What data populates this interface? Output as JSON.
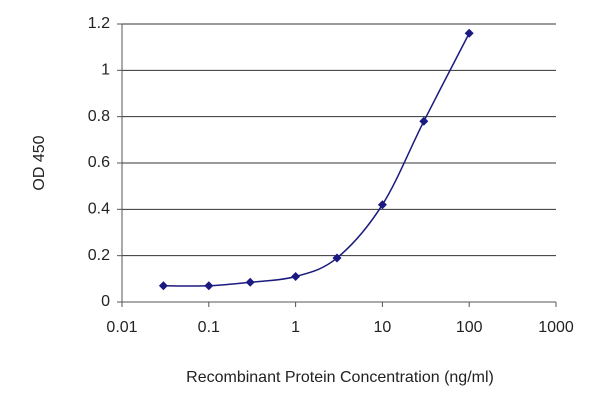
{
  "chart_data": {
    "type": "line",
    "x_label": "Recombinant Protein Concentration (ng/ml)",
    "y_label": "OD 450",
    "x": [
      0.03,
      0.1,
      0.3,
      1,
      3,
      10,
      30,
      100
    ],
    "series": [
      {
        "color": "#1a1a80",
        "values": [
          0.07,
          0.07,
          0.085,
          0.11,
          0.19,
          0.42,
          0.78,
          1.16
        ]
      }
    ],
    "xscale": "log",
    "xlim": [
      0.01,
      1000
    ],
    "xticks": [
      0.01,
      0.1,
      1,
      10,
      100,
      1000
    ],
    "ylim": [
      0,
      1.2
    ],
    "yticks": [
      0,
      0.2,
      0.4,
      0.6,
      0.8,
      1,
      1.2
    ],
    "grid": true
  }
}
